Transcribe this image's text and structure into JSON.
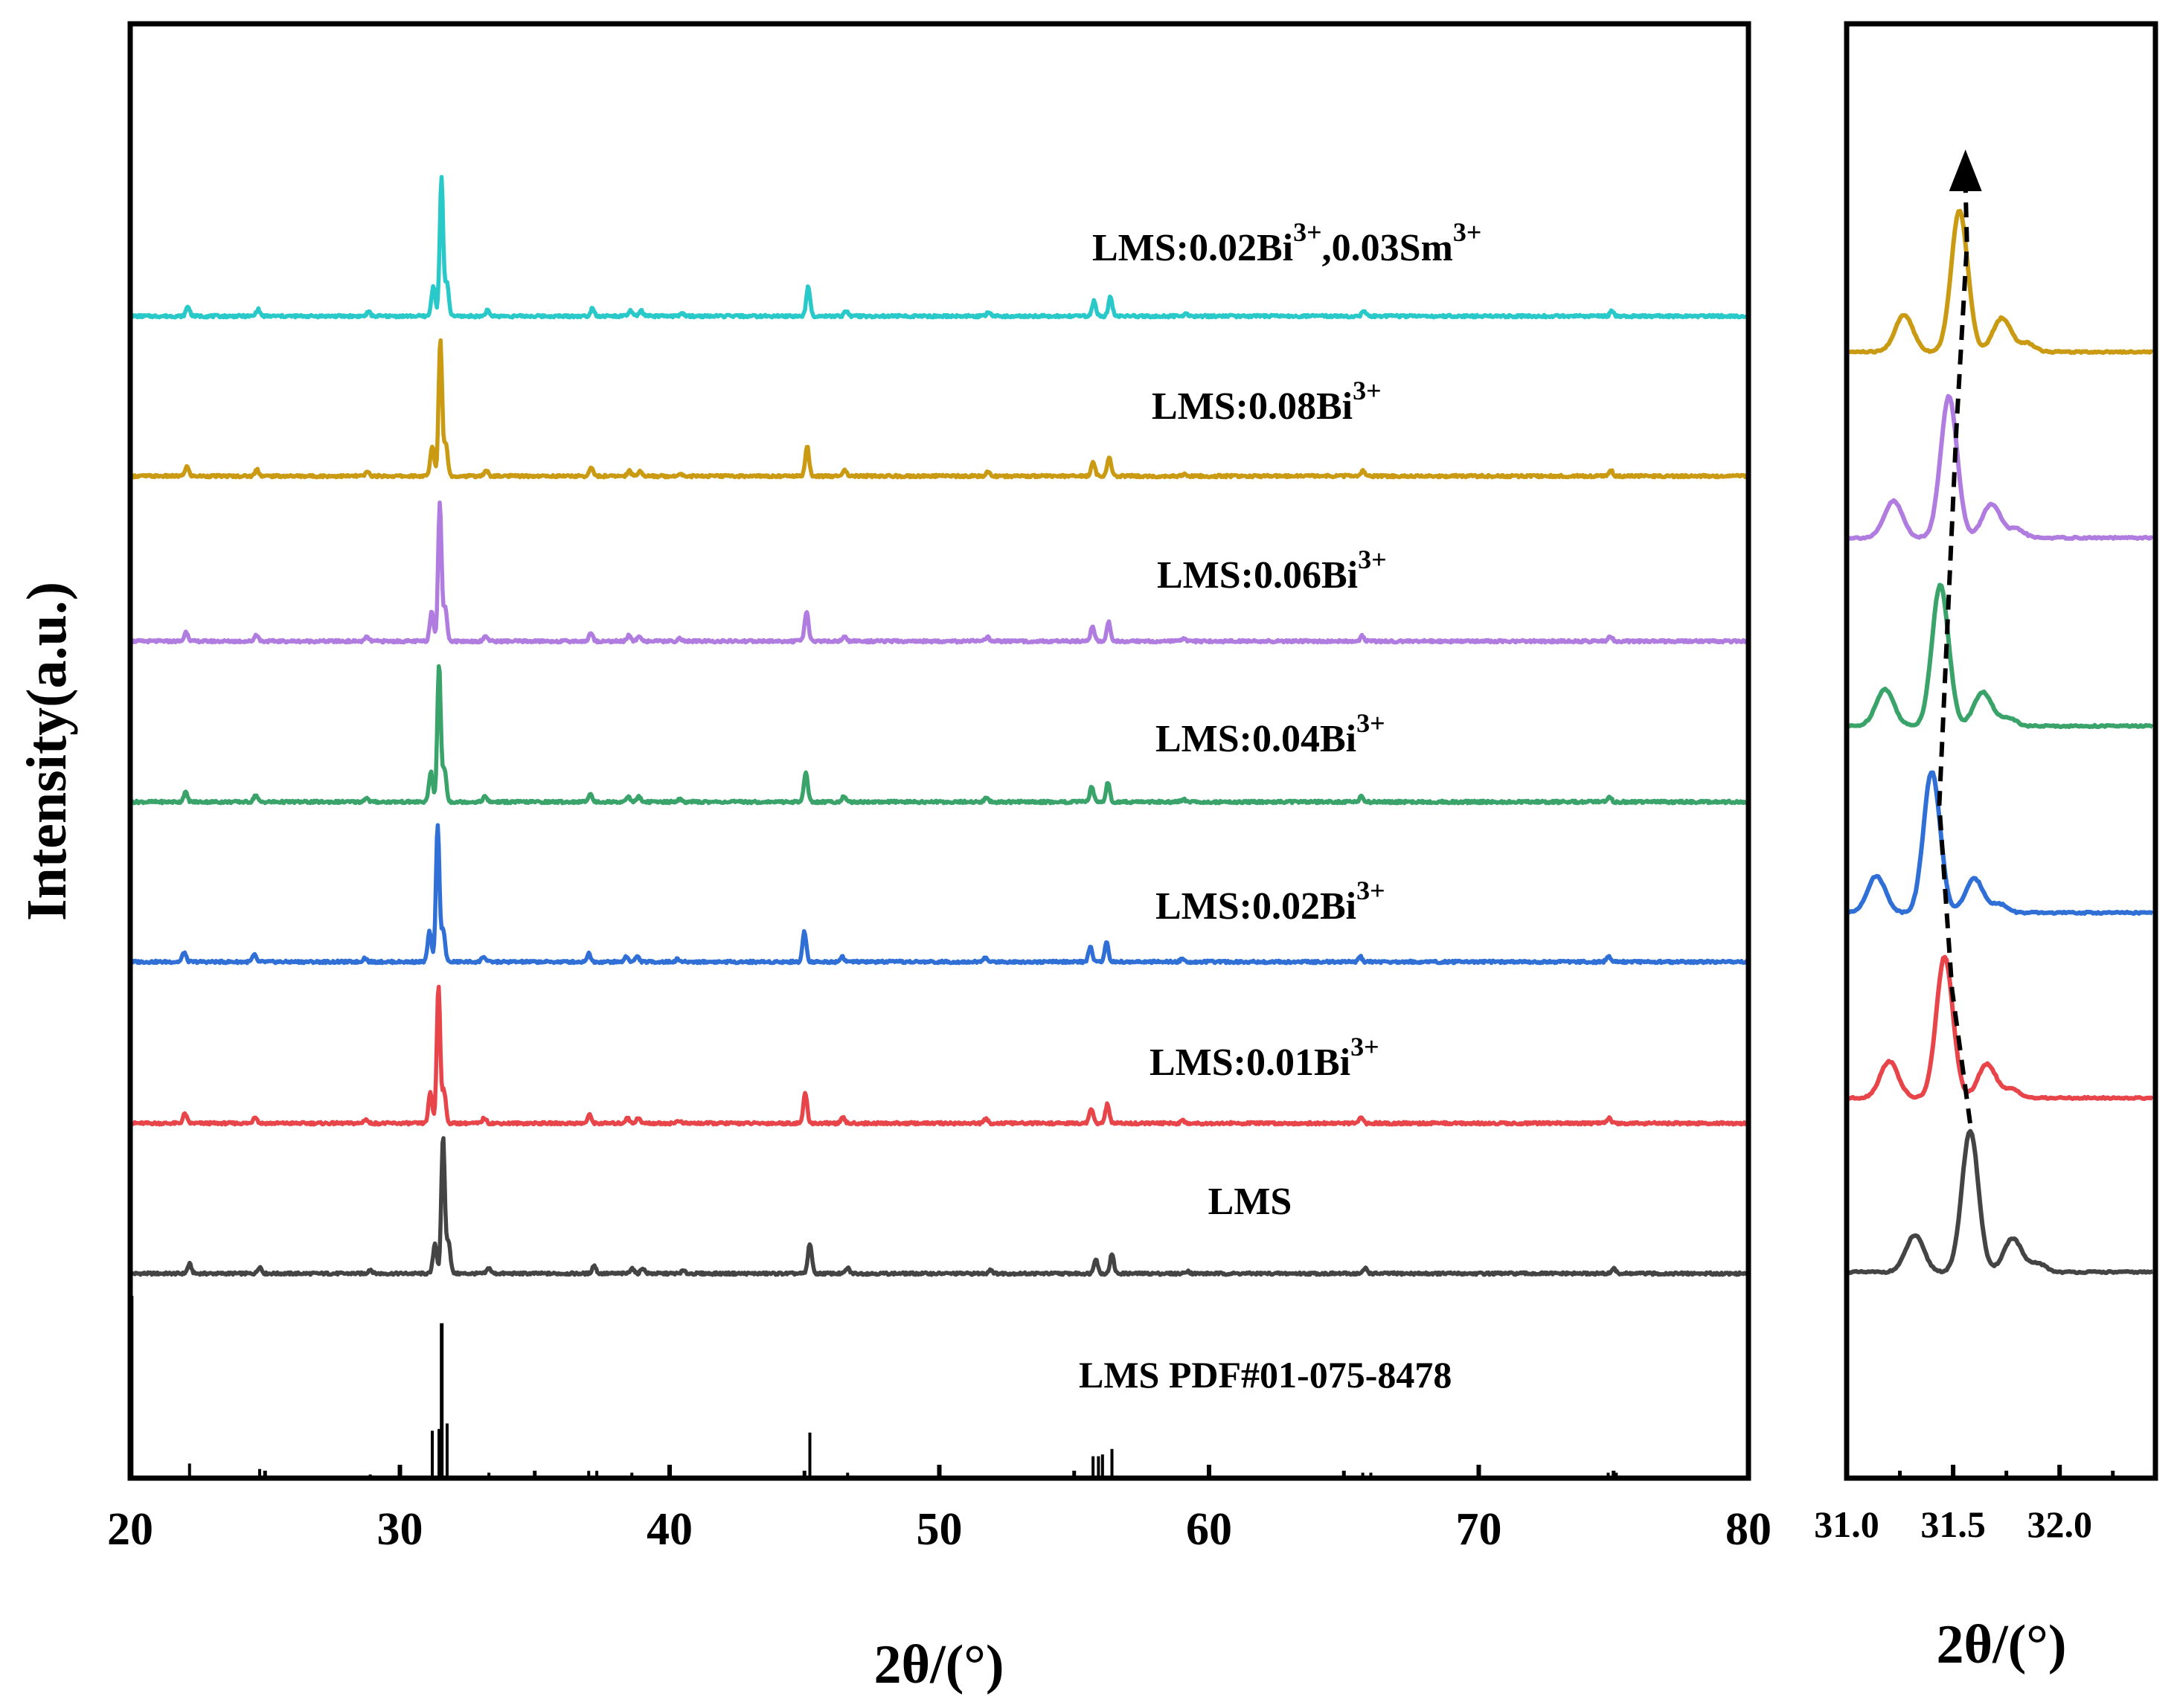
{
  "chart_data": [
    {
      "type": "line",
      "panel": "main",
      "xlabel": "2θ/(°)",
      "ylabel": "Intensity(a.u.)",
      "xlim": [
        20,
        80
      ],
      "x_ticks": [
        20,
        30,
        40,
        50,
        60,
        70,
        80
      ],
      "x_tick_labels": [
        "20",
        "30",
        "40",
        "50",
        "60",
        "70",
        "80"
      ],
      "y_ticks_shown": false,
      "series": [
        {
          "name": "LMS",
          "label": "LMS",
          "color": "#444444",
          "shift": 0.0
        },
        {
          "name": "LMS:0.01Bi3+",
          "label": "LMS:0.01Bi",
          "sup": "3+",
          "color": "#e8454b",
          "shift": -0.17
        },
        {
          "name": "LMS:0.02Bi3+",
          "label": "LMS:0.02Bi",
          "sup": "3+",
          "color": "#2f6fd6",
          "shift": -0.2
        },
        {
          "name": "LMS:0.04Bi3+",
          "label": "LMS:0.04Bi",
          "sup": "3+",
          "color": "#3aa36a",
          "shift": -0.15
        },
        {
          "name": "LMS:0.06Bi3+",
          "label": "LMS:0.06Bi",
          "sup": "3+",
          "color": "#b07ce0",
          "shift": -0.12
        },
        {
          "name": "LMS:0.08Bi3+",
          "label": "LMS:0.08Bi",
          "sup": "3+",
          "color": "#c99a12",
          "shift": -0.1
        },
        {
          "name": "LMS:0.02Bi3+,0.03Sm3+",
          "label_parts": [
            "LMS:0.02Bi",
            "3+",
            ",0.03Sm",
            "3+"
          ],
          "color": "#29c9c9",
          "shift": -0.06
        }
      ],
      "peaks": [
        {
          "pos": 22.2,
          "h": 0.07
        },
        {
          "pos": 24.8,
          "h": 0.05
        },
        {
          "pos": 28.9,
          "h": 0.03
        },
        {
          "pos": 31.3,
          "h": 0.22
        },
        {
          "pos": 31.6,
          "h": 1.0
        },
        {
          "pos": 31.8,
          "h": 0.24
        },
        {
          "pos": 33.3,
          "h": 0.04
        },
        {
          "pos": 37.2,
          "h": 0.06
        },
        {
          "pos": 38.6,
          "h": 0.04
        },
        {
          "pos": 39.0,
          "h": 0.04
        },
        {
          "pos": 40.5,
          "h": 0.02
        },
        {
          "pos": 45.2,
          "h": 0.22
        },
        {
          "pos": 46.6,
          "h": 0.04
        },
        {
          "pos": 51.9,
          "h": 0.03
        },
        {
          "pos": 55.8,
          "h": 0.11
        },
        {
          "pos": 56.4,
          "h": 0.14
        },
        {
          "pos": 59.2,
          "h": 0.02
        },
        {
          "pos": 65.8,
          "h": 0.04
        },
        {
          "pos": 75.0,
          "h": 0.04
        }
      ],
      "reference": {
        "label": "LMS PDF#01-075-8478",
        "sticks": [
          {
            "pos": 20.05,
            "h": 1.0
          },
          {
            "pos": 22.2,
            "h": 0.08
          },
          {
            "pos": 24.8,
            "h": 0.05
          },
          {
            "pos": 28.9,
            "h": 0.02
          },
          {
            "pos": 31.2,
            "h": 0.26
          },
          {
            "pos": 31.45,
            "h": 0.27
          },
          {
            "pos": 31.55,
            "h": 0.85
          },
          {
            "pos": 31.75,
            "h": 0.3
          },
          {
            "pos": 33.3,
            "h": 0.03
          },
          {
            "pos": 37.0,
            "h": 0.04
          },
          {
            "pos": 37.3,
            "h": 0.04
          },
          {
            "pos": 38.6,
            "h": 0.03
          },
          {
            "pos": 45.2,
            "h": 0.25
          },
          {
            "pos": 46.6,
            "h": 0.03
          },
          {
            "pos": 55.7,
            "h": 0.12
          },
          {
            "pos": 55.9,
            "h": 0.12
          },
          {
            "pos": 56.05,
            "h": 0.13
          },
          {
            "pos": 56.4,
            "h": 0.16
          },
          {
            "pos": 65.7,
            "h": 0.03
          },
          {
            "pos": 66.0,
            "h": 0.03
          },
          {
            "pos": 74.8,
            "h": 0.03
          },
          {
            "pos": 75.1,
            "h": 0.03
          }
        ]
      }
    },
    {
      "type": "line",
      "panel": "zoom",
      "xlabel": "2θ/(°)",
      "xlim": [
        31.0,
        32.45
      ],
      "x_ticks": [
        31.0,
        31.5,
        32.0
      ],
      "x_tick_labels": [
        "31.0",
        "31.5",
        "32.0"
      ],
      "x_minor_ticks": [
        31.25,
        31.75,
        32.25
      ],
      "series": [
        {
          "name": "LMS",
          "color": "#444444",
          "center": 31.58
        },
        {
          "name": "LMS:0.01Bi3+",
          "color": "#e8454b",
          "center": 31.46
        },
        {
          "name": "LMS:0.02Bi3+",
          "color": "#2f6fd6",
          "center": 31.4
        },
        {
          "name": "LMS:0.04Bi3+",
          "color": "#3aa36a",
          "center": 31.44
        },
        {
          "name": "LMS:0.06Bi3+",
          "color": "#b07ce0",
          "center": 31.48
        },
        {
          "name": "LMS:0.08Bi3+",
          "color": "#c99a12",
          "center": 31.53
        }
      ],
      "annotation": "dashed arrow following the main peak shift"
    }
  ]
}
